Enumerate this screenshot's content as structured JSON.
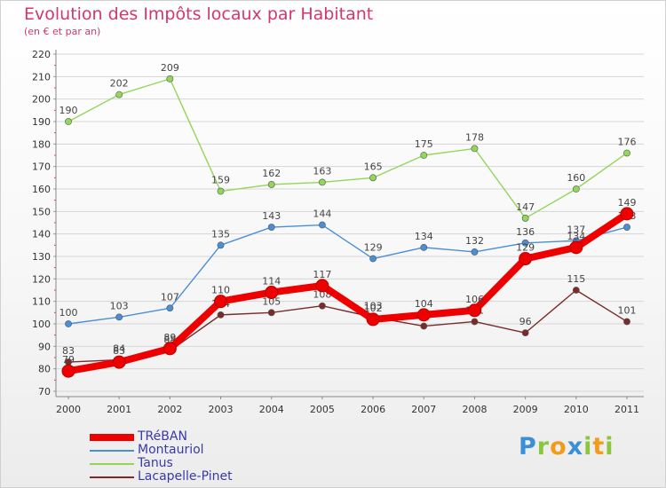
{
  "header": {
    "title": "Evolution des Impôts locaux par Habitant",
    "subtitle": "(en € et par an)"
  },
  "brand": {
    "text": "Proxiti",
    "letters": [
      {
        "char": "P",
        "color": "#3b8fd3"
      },
      {
        "char": "r",
        "color": "#8cc63f"
      },
      {
        "char": "o",
        "color": "#f39c1b"
      },
      {
        "char": "x",
        "color": "#3b8fd3"
      },
      {
        "char": "i",
        "color": "#8cc63f"
      },
      {
        "char": "t",
        "color": "#f39c1b"
      },
      {
        "char": "i",
        "color": "#8cc63f"
      }
    ]
  },
  "chart_data": {
    "type": "line",
    "title": "Evolution des Impôts locaux par Habitant",
    "subtitle": "(en € et par an)",
    "xlabel": "",
    "ylabel": "",
    "categories": [
      "2000",
      "2001",
      "2002",
      "2003",
      "2004",
      "2005",
      "2006",
      "2007",
      "2008",
      "2009",
      "2010",
      "2011"
    ],
    "ylim": [
      70,
      220
    ],
    "yticks": [
      70,
      80,
      90,
      100,
      110,
      120,
      130,
      140,
      150,
      160,
      170,
      180,
      190,
      200,
      210,
      220
    ],
    "grid": "horizontal",
    "legend_position": "bottom-left",
    "series": [
      {
        "name": "TRéBAN",
        "color": "#ee0000",
        "emphasis": true,
        "values": [
          79,
          83,
          89,
          110,
          114,
          117,
          102,
          104,
          106,
          129,
          134,
          149
        ]
      },
      {
        "name": "Montauriol",
        "color": "#4a8fd6",
        "emphasis": false,
        "values": [
          100,
          103,
          107,
          135,
          143,
          144,
          129,
          134,
          132,
          136,
          137,
          143
        ]
      },
      {
        "name": "Tanus",
        "color": "#92d65a",
        "emphasis": false,
        "values": [
          190,
          202,
          209,
          159,
          162,
          163,
          165,
          175,
          178,
          147,
          160,
          176
        ]
      },
      {
        "name": "Lacapelle-Pinet",
        "color": "#7a2b2b",
        "emphasis": false,
        "values": [
          83,
          84,
          88,
          104,
          105,
          108,
          103,
          99,
          101,
          96,
          115,
          101
        ]
      }
    ]
  }
}
